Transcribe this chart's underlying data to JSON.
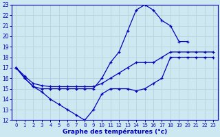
{
  "xlabel": "Graphe des températures (°c)",
  "bg_color": "#cde8f0",
  "line_color": "#0000bb",
  "grid_color": "#b8d8e0",
  "xlim": [
    -0.5,
    23.5
  ],
  "ylim": [
    12,
    23
  ],
  "xticks": [
    0,
    1,
    2,
    3,
    4,
    5,
    6,
    7,
    8,
    9,
    10,
    11,
    12,
    13,
    14,
    15,
    16,
    17,
    18,
    19,
    20,
    21,
    22,
    23
  ],
  "yticks": [
    12,
    13,
    14,
    15,
    16,
    17,
    18,
    19,
    20,
    21,
    22,
    23
  ],
  "series": [
    {
      "x": [
        0,
        1,
        2,
        3,
        4,
        5,
        6,
        7,
        8,
        9,
        10,
        11,
        12,
        13,
        14,
        15,
        16,
        17,
        18,
        19,
        20,
        21,
        22,
        23
      ],
      "y": [
        17,
        16,
        15.2,
        14.7,
        14,
        13.5,
        13,
        12.5,
        12,
        13,
        14.5,
        15,
        15,
        15,
        14.8,
        15,
        15.5,
        16,
        18,
        18,
        18,
        18,
        18,
        18
      ]
    },
    {
      "x": [
        0,
        1,
        2,
        3,
        4,
        5,
        6,
        7,
        8,
        9,
        10,
        11,
        12,
        13,
        14,
        15,
        16,
        17,
        18,
        19,
        20
      ],
      "y": [
        17,
        16,
        15.2,
        15,
        15,
        15,
        15,
        15,
        15,
        15,
        16,
        17.5,
        18.5,
        20.5,
        22.5,
        23,
        22.5,
        21.5,
        21,
        19.5,
        19.5
      ]
    },
    {
      "x": [
        0,
        1,
        2,
        3,
        4,
        5,
        6,
        7,
        8,
        9,
        10,
        11,
        12,
        13,
        14,
        15,
        16,
        17,
        18,
        19,
        20,
        21,
        22,
        23
      ],
      "y": [
        17,
        16.2,
        15.5,
        15.3,
        15.2,
        15.2,
        15.2,
        15.2,
        15.2,
        15.2,
        15.5,
        16,
        16.5,
        17,
        17.5,
        17.5,
        17.5,
        18,
        18.5,
        18.5,
        18.5,
        18.5,
        18.5,
        18.5
      ]
    }
  ]
}
